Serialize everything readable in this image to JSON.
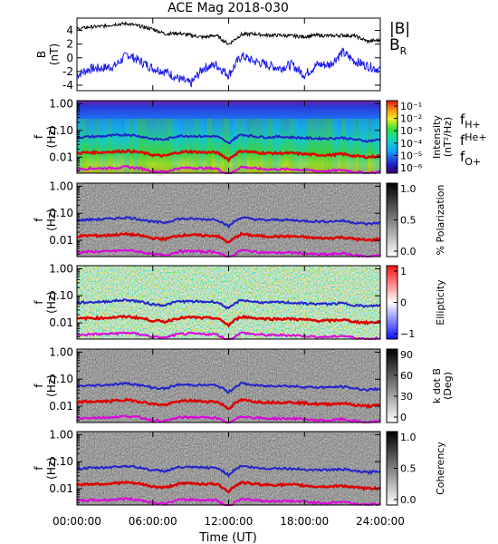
{
  "title": "ACE Mag 2018-030",
  "xlabel": "Time (UT)",
  "x_ticks": [
    "00:00:00",
    "06:00:00",
    "12:00:00",
    "18:00:00",
    "24:00:00"
  ],
  "x_range_hours": [
    0,
    24
  ],
  "panel0": {
    "ylabel_top": "B",
    "ylabel_bottom": "(nT)",
    "y_ticks": [
      "4",
      "2",
      "0",
      "-2",
      "-4"
    ],
    "ylim": [
      -4.8,
      5.8
    ],
    "legend_b": "|B|",
    "legend_br_main": "B",
    "legend_br_sub": "R"
  },
  "freq_ylabel_top": "f",
  "freq_ylabel_bottom": "(Hz)",
  "freq_y_ticks": [
    "1.00",
    "0.10",
    "0.01"
  ],
  "freq_ylim": [
    0.0025,
    1.3
  ],
  "ion_labels": [
    {
      "main": "f",
      "sub": "H+",
      "color": "#2222cc"
    },
    {
      "main": "f",
      "sub": "He+",
      "color": "#dd0000"
    },
    {
      "main": "f",
      "sub": "O+",
      "color": "#dd00dd"
    }
  ],
  "colorbars": [
    {
      "label_line1": "Intensity",
      "label_line2": "(nT²/Hz)",
      "ticks": [
        "10⁻¹",
        "10⁻²",
        "10⁻³",
        "10⁻⁴",
        "10⁻⁵",
        "10⁻⁶"
      ]
    },
    {
      "label_line1": "% Polarization",
      "label_line2": "",
      "ticks": [
        "1.0",
        "0.5",
        "0.0"
      ]
    },
    {
      "label_line1": "Ellipticity",
      "label_line2": "",
      "ticks": [
        "1",
        "0",
        "−1"
      ]
    },
    {
      "label_line1": "k dot B",
      "label_line2": "(Deg)",
      "ticks": [
        "90",
        "60",
        "30",
        "0"
      ]
    },
    {
      "label_line1": "Coherency",
      "label_line2": "",
      "ticks": [
        "1.0",
        "0.5",
        "0.0"
      ]
    }
  ],
  "colors": {
    "b_total": "#000000",
    "b_r": "#1a1aee",
    "f_h": "#2222cc",
    "f_he": "#dd0000",
    "f_o": "#dd00dd"
  },
  "chart_data": {
    "type": "line",
    "title": "ACE Mag 2018-030",
    "xlabel": "Time (UT)",
    "x_hours": [
      0,
      1,
      2,
      3,
      4,
      5,
      6,
      7,
      8,
      9,
      10,
      11,
      12,
      13,
      14,
      15,
      16,
      17,
      18,
      19,
      20,
      21,
      22,
      23,
      24
    ],
    "series": [
      {
        "name": "|B|",
        "values": [
          4.2,
          4.5,
          4.6,
          4.9,
          5.0,
          4.6,
          4.2,
          3.5,
          3.6,
          3.3,
          3.0,
          3.3,
          2.0,
          3.4,
          3.5,
          3.3,
          3.3,
          3.2,
          3.1,
          3.3,
          3.2,
          3.3,
          3.2,
          2.4,
          2.6
        ]
      },
      {
        "name": "B_R",
        "values": [
          -2.5,
          -1.6,
          -1.5,
          -1.2,
          0.5,
          -0.5,
          -1.5,
          -2.0,
          -3.0,
          -3.8,
          -1.5,
          -1.0,
          -2.5,
          0.3,
          -0.5,
          -1.0,
          -1.5,
          -1.0,
          -2.5,
          -1.0,
          -1.0,
          0.8,
          -0.5,
          -1.2,
          -1.7
        ]
      },
      {
        "name": "f_H+",
        "values": [
          0.055,
          0.058,
          0.06,
          0.065,
          0.07,
          0.06,
          0.048,
          0.045,
          0.062,
          0.062,
          0.06,
          0.06,
          0.032,
          0.07,
          0.06,
          0.055,
          0.058,
          0.055,
          0.052,
          0.05,
          0.05,
          0.053,
          0.045,
          0.04,
          0.045
        ]
      },
      {
        "name": "f_He+",
        "values": [
          0.014,
          0.015,
          0.015,
          0.016,
          0.017,
          0.015,
          0.012,
          0.011,
          0.015,
          0.016,
          0.015,
          0.015,
          0.008,
          0.017,
          0.015,
          0.014,
          0.014,
          0.014,
          0.013,
          0.012,
          0.012,
          0.013,
          0.011,
          0.01,
          0.011
        ]
      },
      {
        "name": "f_O+",
        "values": [
          0.0035,
          0.0038,
          0.0038,
          0.004,
          0.0043,
          0.0038,
          0.003,
          0.0028,
          0.0038,
          0.004,
          0.0038,
          0.0038,
          0.002,
          0.0043,
          0.0038,
          0.0035,
          0.0035,
          0.0035,
          0.0033,
          0.003,
          0.003,
          0.0033,
          0.0028,
          0.0025,
          0.0028
        ]
      }
    ]
  }
}
